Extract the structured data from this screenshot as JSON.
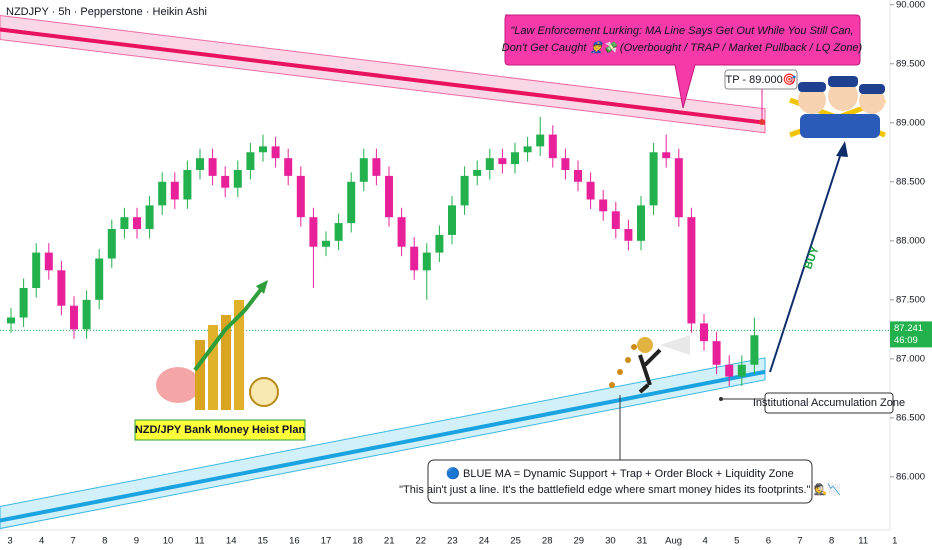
{
  "chart_data": {
    "type": "candlestick",
    "title": "NZDJPY · 5h · Pepperstone · Heikin Ashi",
    "up_color": "#22b14c",
    "down_color": "#e8219a",
    "ylim": [
      85.55,
      90.04
    ],
    "yticks": [
      {
        "value": 86,
        "label": "86.000"
      },
      {
        "value": 86.5,
        "label": "86.500"
      },
      {
        "value": 87,
        "label": "87.000"
      },
      {
        "value": 87.5,
        "label": "87.500"
      },
      {
        "value": 88,
        "label": "88.000"
      },
      {
        "value": 88.5,
        "label": "88.500"
      },
      {
        "value": 89,
        "label": "89.000"
      },
      {
        "value": 89.5,
        "label": "89.500"
      },
      {
        "value": 90,
        "label": "90.000"
      }
    ],
    "categories": [
      "3",
      "4",
      "7",
      "8",
      "9",
      "10",
      "11",
      "14",
      "15",
      "16",
      "17",
      "18",
      "21",
      "22",
      "23",
      "24",
      "25",
      "28",
      "29",
      "30",
      "31",
      "Aug",
      "4",
      "5",
      "6",
      "7",
      "8",
      "11",
      "1"
    ],
    "last_price": 87.241,
    "countdown": "46:09",
    "resistance_line": {
      "start": 89.79,
      "end": 89.0
    },
    "support_line": {
      "start": 85.63,
      "end": 86.89
    },
    "ohlc": [
      [
        87.3,
        87.43,
        87.22,
        87.35
      ],
      [
        87.35,
        87.68,
        87.27,
        87.6
      ],
      [
        87.6,
        87.98,
        87.52,
        87.9
      ],
      [
        87.9,
        87.98,
        87.67,
        87.75
      ],
      [
        87.75,
        87.83,
        87.37,
        87.45
      ],
      [
        87.45,
        87.53,
        87.17,
        87.25
      ],
      [
        87.25,
        87.58,
        87.17,
        87.5
      ],
      [
        87.5,
        87.93,
        87.42,
        87.85
      ],
      [
        87.85,
        88.18,
        87.77,
        88.1
      ],
      [
        88.1,
        88.28,
        88.02,
        88.2
      ],
      [
        88.2,
        88.28,
        88.02,
        88.1
      ],
      [
        88.1,
        88.38,
        88.02,
        88.3
      ],
      [
        88.3,
        88.58,
        88.22,
        88.5
      ],
      [
        88.5,
        88.58,
        88.27,
        88.35
      ],
      [
        88.35,
        88.68,
        88.27,
        88.6
      ],
      [
        88.6,
        88.78,
        88.52,
        88.7
      ],
      [
        88.7,
        88.78,
        88.47,
        88.55
      ],
      [
        88.55,
        88.63,
        88.37,
        88.45
      ],
      [
        88.45,
        88.68,
        88.37,
        88.6
      ],
      [
        88.6,
        88.83,
        88.52,
        88.75
      ],
      [
        88.75,
        88.9,
        88.67,
        88.8
      ],
      [
        88.8,
        88.88,
        88.62,
        88.7
      ],
      [
        88.7,
        88.78,
        88.47,
        88.55
      ],
      [
        88.55,
        88.63,
        88.12,
        88.2
      ],
      [
        88.2,
        88.28,
        87.6,
        87.95
      ],
      [
        87.95,
        88.08,
        87.87,
        88.0
      ],
      [
        88.0,
        88.23,
        87.92,
        88.15
      ],
      [
        88.15,
        88.58,
        88.07,
        88.5
      ],
      [
        88.5,
        88.78,
        88.42,
        88.7
      ],
      [
        88.7,
        88.78,
        88.47,
        88.55
      ],
      [
        88.55,
        88.63,
        88.12,
        88.2
      ],
      [
        88.2,
        88.28,
        87.87,
        87.95
      ],
      [
        87.95,
        88.03,
        87.67,
        87.75
      ],
      [
        87.75,
        87.98,
        87.5,
        87.9
      ],
      [
        87.9,
        88.13,
        87.82,
        88.05
      ],
      [
        88.05,
        88.38,
        87.97,
        88.3
      ],
      [
        88.3,
        88.63,
        88.22,
        88.55
      ],
      [
        88.55,
        88.68,
        88.47,
        88.6
      ],
      [
        88.6,
        88.78,
        88.52,
        88.7
      ],
      [
        88.7,
        88.78,
        88.57,
        88.65
      ],
      [
        88.65,
        88.83,
        88.57,
        88.75
      ],
      [
        88.75,
        88.88,
        88.67,
        88.8
      ],
      [
        88.8,
        89.05,
        88.72,
        88.9
      ],
      [
        88.9,
        88.98,
        88.62,
        88.7
      ],
      [
        88.7,
        88.78,
        88.52,
        88.6
      ],
      [
        88.6,
        88.68,
        88.42,
        88.5
      ],
      [
        88.5,
        88.58,
        88.27,
        88.35
      ],
      [
        88.35,
        88.43,
        88.17,
        88.25
      ],
      [
        88.25,
        88.33,
        88.02,
        88.1
      ],
      [
        88.1,
        88.18,
        87.92,
        88.0
      ],
      [
        88.0,
        88.38,
        87.92,
        88.3
      ],
      [
        88.3,
        88.83,
        88.22,
        88.75
      ],
      [
        88.75,
        88.9,
        88.62,
        88.7
      ],
      [
        88.7,
        88.78,
        88.12,
        88.2
      ],
      [
        88.2,
        88.28,
        87.22,
        87.3
      ],
      [
        87.3,
        87.38,
        87.07,
        87.15
      ],
      [
        87.15,
        87.23,
        86.87,
        86.95
      ],
      [
        86.95,
        87.03,
        86.77,
        86.85
      ],
      [
        86.85,
        87.03,
        86.77,
        86.95
      ],
      [
        86.95,
        87.35,
        86.87,
        87.2
      ]
    ],
    "annotations": {
      "callout": [
        "\"Law Enforcement Lurking: MA Line Says Get Out While You Still Can,",
        "Don't Get Caught 👮💸 (Overbought / TRAP / Market Pullback / LQ Zone)"
      ],
      "tp": "TP - 89.000🎯",
      "buy": "BUY",
      "zone": "Institutional Accumulation Zone",
      "plan": "NZD/JPY Bank Money Heist Plan",
      "note": [
        "🔵 BLUE MA = Dynamic Support + Trap + Order Block + Liquidity Zone",
        "\"This ain't just a line. It's the battlefield edge where smart money hides its footprints.\" 🕵️📉"
      ]
    }
  }
}
